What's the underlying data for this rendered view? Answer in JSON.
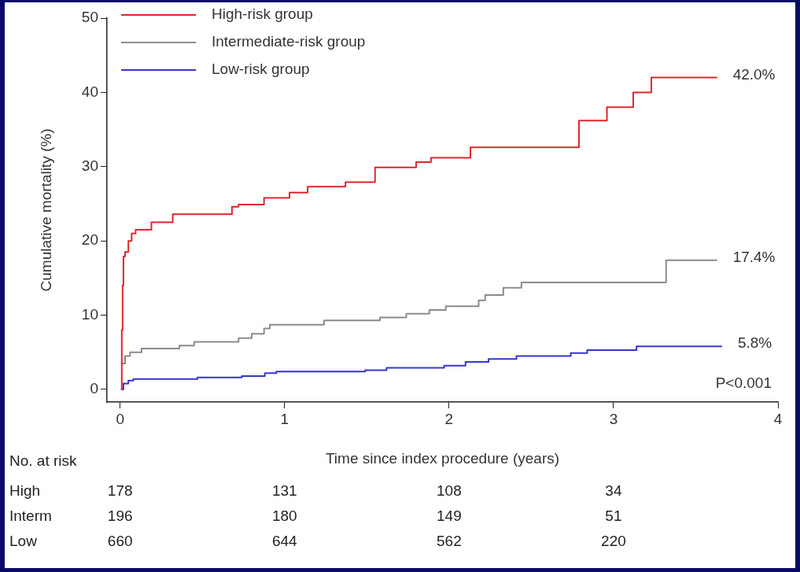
{
  "chart_data": {
    "type": "step",
    "xlabel": "Time since index procedure (years)",
    "ylabel": "Cumulative mortality (%)",
    "xlim": [
      -0.08,
      4
    ],
    "xticks": [
      0,
      1,
      2,
      3,
      4
    ],
    "ylim": [
      -1.7,
      50
    ],
    "yticks": [
      0,
      10,
      20,
      30,
      40,
      50
    ],
    "grid": false,
    "legend": "top left",
    "marker": "none",
    "line_style": "solid",
    "series": [
      {
        "name": "High-risk group",
        "color": "#e0262c",
        "x": [
          0.005,
          0.01,
          0.015,
          0.02,
          0.03,
          0.05,
          0.07,
          0.094,
          0.19,
          0.32,
          0.68,
          0.72,
          0.875,
          1.03,
          1.14,
          1.37,
          1.55,
          1.8,
          1.89,
          2.13,
          2.79,
          2.96,
          3.12,
          3.23,
          3.63
        ],
        "values": [
          0,
          8,
          14,
          17.9,
          18.5,
          20,
          21,
          21.5,
          22.5,
          23.6,
          24.6,
          24.9,
          25.8,
          26.5,
          27.3,
          27.9,
          29.9,
          30.6,
          31.2,
          32.6,
          36.2,
          38.0,
          40.0,
          42.0,
          42.0
        ]
      },
      {
        "name": "Intermediate-risk group",
        "color": "#8c8c8c",
        "x": [
          0.005,
          0.03,
          0.06,
          0.13,
          0.36,
          0.45,
          0.72,
          0.8,
          0.875,
          0.91,
          1.24,
          1.58,
          1.74,
          1.88,
          1.98,
          2.18,
          2.22,
          2.33,
          2.44,
          3.32,
          3.63
        ],
        "values": [
          3.5,
          4.5,
          5.0,
          5.5,
          5.9,
          6.4,
          6.9,
          7.5,
          8.2,
          8.7,
          9.3,
          9.7,
          10.2,
          10.7,
          11.2,
          12.0,
          12.7,
          13.7,
          14.4,
          17.4,
          17.4
        ]
      },
      {
        "name": "Low-risk group",
        "color": "#3535d0",
        "x": [
          0.005,
          0.02,
          0.05,
          0.08,
          0.47,
          0.74,
          0.88,
          0.95,
          1.49,
          1.62,
          1.97,
          2.1,
          2.24,
          2.41,
          2.74,
          2.84,
          3.14,
          3.66
        ],
        "values": [
          0,
          0.8,
          1.2,
          1.4,
          1.6,
          1.8,
          2.2,
          2.4,
          2.6,
          2.9,
          3.2,
          3.7,
          4.1,
          4.5,
          4.9,
          5.3,
          5.8,
          5.8
        ]
      }
    ],
    "annotations": [
      "42.0%",
      "17.4%",
      "5.8%",
      "P<0.001",
      "No. at risk",
      "High",
      "178",
      "131",
      "108",
      "34",
      "Interm",
      "196",
      "180",
      "149",
      "51",
      "Low",
      "660",
      "644",
      "562",
      "220"
    ]
  }
}
